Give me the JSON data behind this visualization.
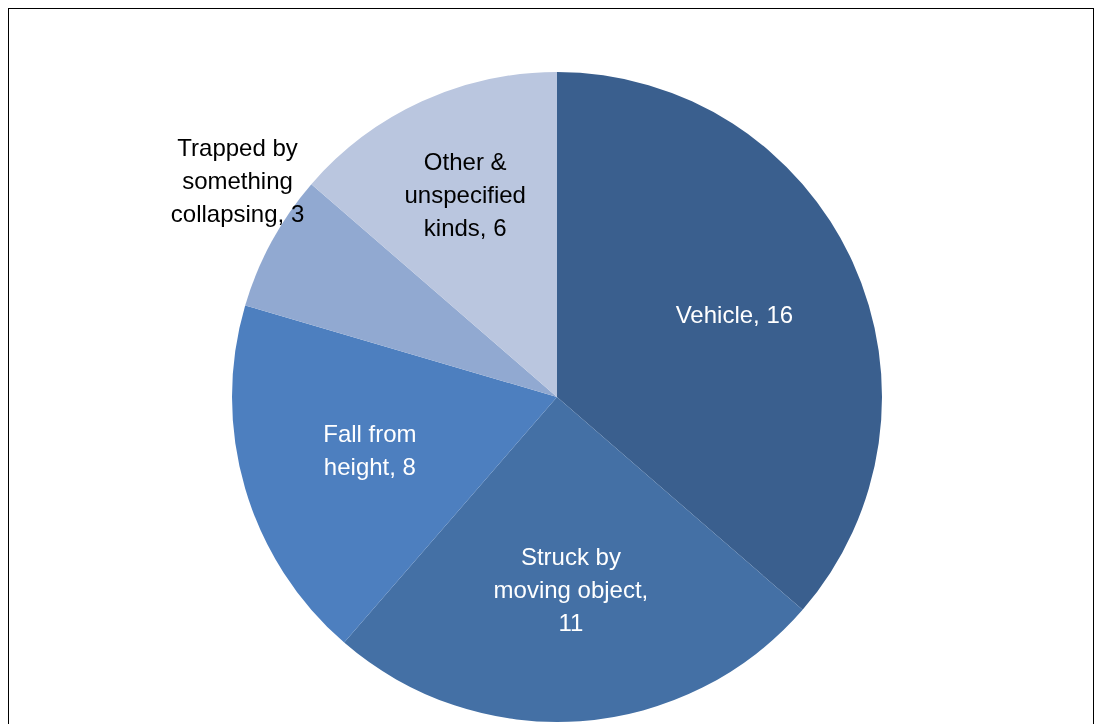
{
  "chart_data": {
    "type": "pie",
    "categories": [
      "Vehicle, 16",
      "Struck by moving object, 11",
      "Fall from height, 8",
      "Trapped by something collapsing, 3",
      "Other & unspecified kinds, 6"
    ],
    "values": [
      16,
      11,
      8,
      3,
      6
    ],
    "colors": [
      "#3a5f8e",
      "#4470a5",
      "#4d7fbf",
      "#91a9d1",
      "#bac6df"
    ],
    "legend": false
  }
}
